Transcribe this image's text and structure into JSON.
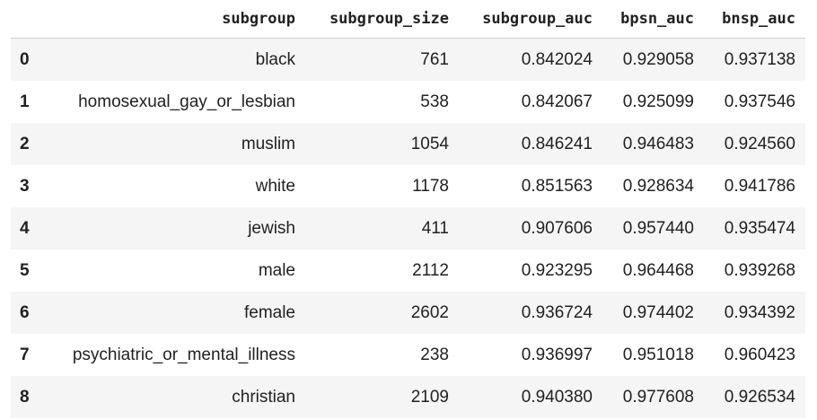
{
  "table": {
    "columns": [
      "",
      "subgroup",
      "subgroup_size",
      "subgroup_auc",
      "bpsn_auc",
      "bnsp_auc"
    ],
    "rows": [
      {
        "index": "0",
        "subgroup": "black",
        "subgroup_size": "761",
        "subgroup_auc": "0.842024",
        "bpsn_auc": "0.929058",
        "bnsp_auc": "0.937138"
      },
      {
        "index": "1",
        "subgroup": "homosexual_gay_or_lesbian",
        "subgroup_size": "538",
        "subgroup_auc": "0.842067",
        "bpsn_auc": "0.925099",
        "bnsp_auc": "0.937546"
      },
      {
        "index": "2",
        "subgroup": "muslim",
        "subgroup_size": "1054",
        "subgroup_auc": "0.846241",
        "bpsn_auc": "0.946483",
        "bnsp_auc": "0.924560"
      },
      {
        "index": "3",
        "subgroup": "white",
        "subgroup_size": "1178",
        "subgroup_auc": "0.851563",
        "bpsn_auc": "0.928634",
        "bnsp_auc": "0.941786"
      },
      {
        "index": "4",
        "subgroup": "jewish",
        "subgroup_size": "411",
        "subgroup_auc": "0.907606",
        "bpsn_auc": "0.957440",
        "bnsp_auc": "0.935474"
      },
      {
        "index": "5",
        "subgroup": "male",
        "subgroup_size": "2112",
        "subgroup_auc": "0.923295",
        "bpsn_auc": "0.964468",
        "bnsp_auc": "0.939268"
      },
      {
        "index": "6",
        "subgroup": "female",
        "subgroup_size": "2602",
        "subgroup_auc": "0.936724",
        "bpsn_auc": "0.974402",
        "bnsp_auc": "0.934392"
      },
      {
        "index": "7",
        "subgroup": "psychiatric_or_mental_illness",
        "subgroup_size": "238",
        "subgroup_auc": "0.936997",
        "bpsn_auc": "0.951018",
        "bnsp_auc": "0.960423"
      },
      {
        "index": "8",
        "subgroup": "christian",
        "subgroup_size": "2109",
        "subgroup_auc": "0.940380",
        "bpsn_auc": "0.977608",
        "bnsp_auc": "0.926534"
      }
    ]
  },
  "colors": {
    "stripe": "#f5f5f5",
    "text": "#212121",
    "header_border": "#d0d0d0"
  }
}
